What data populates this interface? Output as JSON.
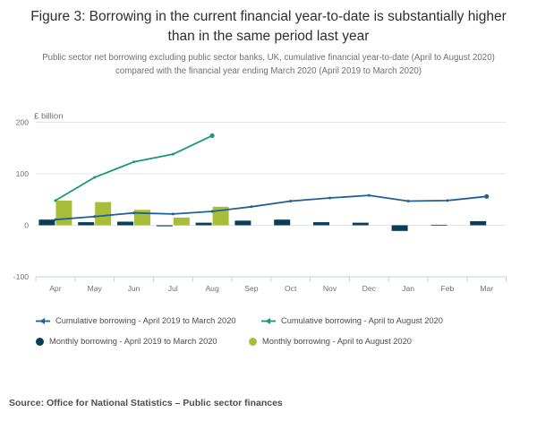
{
  "header": {
    "title": "Figure 3: Borrowing in the current financial year-to-date is substantially higher than in the same period last year",
    "subtitle": "Public sector net borrowing excluding public sector banks, UK, cumulative financial year-to-date (April to August 2020) compared with the financial year ending March 2020 (April 2019 to March 2020)"
  },
  "chart_data": {
    "type": "combo-bar-line",
    "title": "Figure 3: Borrowing in the current financial year-to-date is substantially higher than in the same period last year",
    "ylabel": "£ billion",
    "categories": [
      "Apr",
      "May",
      "Jun",
      "Jul",
      "Aug",
      "Sep",
      "Oct",
      "Nov",
      "Dec",
      "Jan",
      "Feb",
      "Mar"
    ],
    "ylim": [
      -100,
      200
    ],
    "yticks": [
      200,
      100,
      0,
      -100
    ],
    "grid": true,
    "legend_position": "bottom",
    "series": [
      {
        "name": "Cumulative borrowing - April 2019 to March 2020",
        "type": "line",
        "color": "#206095",
        "values": [
          11,
          17,
          24,
          22,
          27,
          36,
          47,
          53,
          58,
          47,
          48,
          56
        ]
      },
      {
        "name": "Cumulative borrowing - April to August 2020",
        "type": "line",
        "color": "#179a78",
        "values": [
          48,
          93,
          123,
          138,
          174,
          null,
          null,
          null,
          null,
          null,
          null,
          null
        ]
      },
      {
        "name": "Monthly borrowing - April 2019 to March 2020",
        "type": "bar",
        "color": "#0b3c5a",
        "values": [
          11,
          6,
          7,
          -2,
          5,
          9,
          11,
          6,
          5,
          -11,
          1,
          8
        ]
      },
      {
        "name": "Monthly borrowing - April to August 2020",
        "type": "bar",
        "color": "#a8bd3a",
        "values": [
          48,
          45,
          30,
          15,
          36,
          null,
          null,
          null,
          null,
          null,
          null,
          null
        ]
      }
    ],
    "axis_colors": {
      "gridline": "#e5e5e5",
      "baseline": "#c3d2dc",
      "tick_label": "#707071"
    }
  },
  "source": "Source: Office for National Statistics – Public sector finances"
}
